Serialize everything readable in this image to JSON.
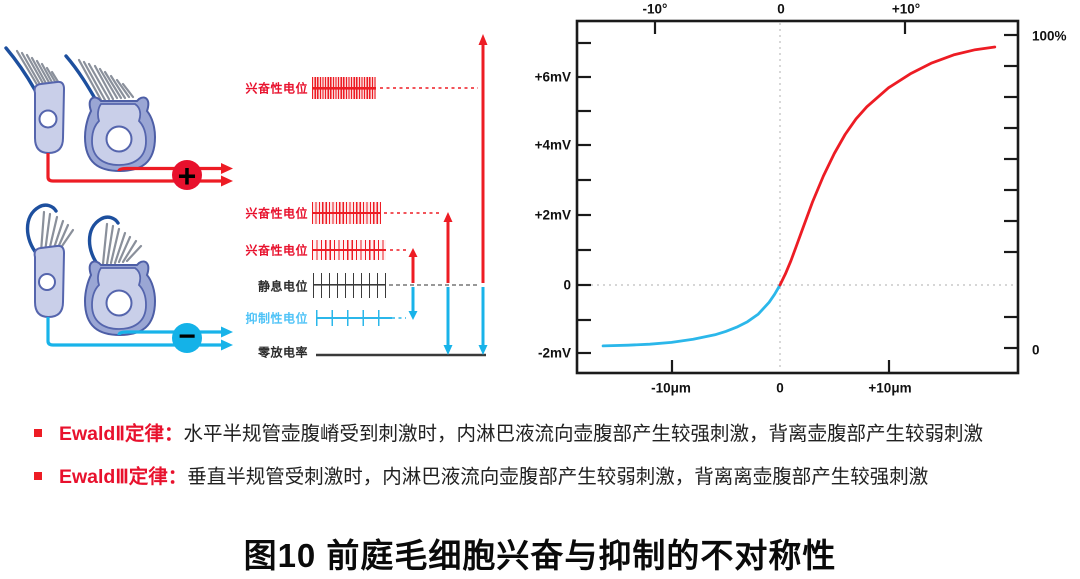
{
  "colors": {
    "red": "#ed1c24",
    "cyan": "#18b3e9",
    "light_blue_label": "#4fc3f7",
    "dark": "#1a1a1a",
    "cell_fill": "#c9cfe9",
    "cell_stroke": "#5565ad",
    "calyx_fill": "#9aa6d4",
    "kinocilium": "#1d4f9e"
  },
  "hair_cell_diagram": {
    "excitation_sign": "+",
    "inhibition_sign": "−"
  },
  "potentials": {
    "excitatory_top": "兴奋性电位",
    "excitatory_mid": "兴奋性电位",
    "excitatory_low": "兴奋性电位",
    "resting": "静息电位",
    "inhibitory": "抑制性电位",
    "zero_rate": "零放电率"
  },
  "spike_trains": [
    {
      "key": "excitatory_top",
      "color": "#ed1c24",
      "density": "very-high"
    },
    {
      "key": "excitatory_mid",
      "color": "#ed1c24",
      "density": "high"
    },
    {
      "key": "excitatory_low",
      "color": "#ed1c24",
      "density": "medium-high"
    },
    {
      "key": "resting",
      "color": "#3a3a3a",
      "density": "medium"
    },
    {
      "key": "inhibitory",
      "color": "#2bb7ea",
      "density": "low"
    }
  ],
  "chart_data": {
    "type": "line",
    "title": "",
    "x_axis_top": {
      "unit": "degrees",
      "ticks": [
        "-10°",
        "0",
        "+10°"
      ]
    },
    "x_axis_bottom": {
      "unit": "micrometers",
      "ticks": [
        "-10μm",
        "0",
        "+10μm"
      ]
    },
    "y_axis_left": {
      "unit": "mV",
      "ticks": [
        "+6mV",
        "+4mV",
        "+2mV",
        "0",
        "-2mV"
      ]
    },
    "y_axis_right": {
      "top_label": "100%",
      "bottom_label": "0"
    },
    "x_range_um": [
      -16.5,
      20
    ],
    "y_range_mv": [
      -2.6,
      7.6
    ],
    "grid": "off",
    "series": [
      {
        "name": "inhibition-blue",
        "color": "#2bb7ea",
        "points": [
          [
            -16.3,
            -1.76
          ],
          [
            -14,
            -1.74
          ],
          [
            -12,
            -1.71
          ],
          [
            -10,
            -1.66
          ],
          [
            -8,
            -1.57
          ],
          [
            -6,
            -1.44
          ],
          [
            -5,
            -1.34
          ],
          [
            -4,
            -1.22
          ],
          [
            -3,
            -1.06
          ],
          [
            -2,
            -0.84
          ],
          [
            -1,
            -0.5
          ],
          [
            -0.5,
            -0.27
          ],
          [
            0,
            0
          ]
        ]
      },
      {
        "name": "excitation-red",
        "color": "#ed1c24",
        "points": [
          [
            0,
            0
          ],
          [
            0.5,
            0.32
          ],
          [
            1,
            0.7
          ],
          [
            1.5,
            1.12
          ],
          [
            2,
            1.55
          ],
          [
            3,
            2.4
          ],
          [
            4,
            3.15
          ],
          [
            5,
            3.8
          ],
          [
            6,
            4.35
          ],
          [
            7,
            4.8
          ],
          [
            8,
            5.15
          ],
          [
            10,
            5.7
          ],
          [
            12,
            6.1
          ],
          [
            14,
            6.42
          ],
          [
            16,
            6.65
          ],
          [
            18,
            6.8
          ],
          [
            19.8,
            6.88
          ]
        ]
      }
    ]
  },
  "bullets": [
    {
      "term": "EwaldⅡ定律：",
      "text": "水平半规管壶腹嵴受到刺激时，内淋巴液流向壶腹部产生较强刺激，背离壶腹部产生较弱刺激"
    },
    {
      "term": "EwaldⅢ定律：",
      "text": "垂直半规管受刺激时，内淋巴液流向壶腹部产生较弱刺激，背离离壶腹部产生较强刺激"
    }
  ],
  "caption": "图10  前庭毛细胞兴奋与抑制的不对称性"
}
